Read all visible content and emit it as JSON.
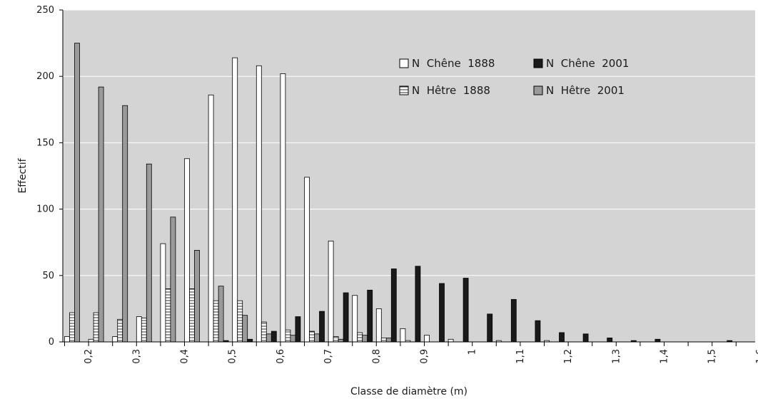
{
  "chart_data": {
    "type": "bar",
    "xlabel": "Classe de diamètre (m)",
    "ylabel": "Effectif",
    "ylim": [
      0,
      250
    ],
    "yticks": [
      0,
      50,
      100,
      150,
      200,
      250
    ],
    "grid": true,
    "legend_position": "top-right",
    "x_tick_labels": [
      "0,2",
      "0,3",
      "0,4",
      "0,5",
      "0,6",
      "0,7",
      "0,8",
      "0,9",
      "1",
      "1,1",
      "1,2",
      "1,3",
      "1,4",
      "1,5",
      "1,6"
    ],
    "categories": [
      "0,15",
      "0,2",
      "0,25",
      "0,3",
      "0,35",
      "0,4",
      "0,45",
      "0,5",
      "0,55",
      "0,6",
      "0,65",
      "0,7",
      "0,75",
      "0,8",
      "0,85",
      "0,9",
      "0,95",
      "1",
      "1,05",
      "1,1",
      "1,15",
      "1,2",
      "1,25",
      "1,3",
      "1,35",
      "1,4",
      "1,45",
      "1,5",
      "1,55"
    ],
    "series": [
      {
        "name": "N  Chêne  1888",
        "pattern": "white",
        "values": [
          4,
          2,
          4,
          19,
          74,
          138,
          186,
          214,
          208,
          202,
          124,
          76,
          35,
          25,
          10,
          5,
          2,
          0,
          1,
          0,
          1,
          0,
          0,
          0,
          0,
          0,
          0,
          0,
          0
        ]
      },
      {
        "name": "N  Hêtre  1888",
        "pattern": "hatched",
        "values": [
          22,
          22,
          17,
          18,
          40,
          40,
          31,
          31,
          15,
          9,
          8,
          4,
          7,
          3,
          1,
          0,
          0,
          0,
          0,
          0,
          0,
          0,
          0,
          0,
          0,
          0,
          0,
          0,
          0
        ]
      },
      {
        "name": "N  Hêtre  2001",
        "pattern": "gray",
        "values": [
          225,
          192,
          178,
          134,
          94,
          69,
          42,
          20,
          6,
          5,
          6,
          2,
          5,
          3,
          0,
          0,
          0,
          0,
          0,
          0,
          0,
          0,
          0,
          0,
          0,
          0,
          0,
          0,
          0
        ]
      },
      {
        "name": "N  Chêne  2001",
        "pattern": "black",
        "values": [
          0,
          0,
          0,
          0,
          0,
          0,
          1,
          2,
          8,
          19,
          23,
          37,
          39,
          55,
          57,
          44,
          48,
          21,
          32,
          16,
          7,
          6,
          3,
          1,
          2,
          0,
          0,
          1,
          0
        ]
      }
    ],
    "colors": {
      "plot_background": "#d4d4d4",
      "gridline": "#ffffff",
      "white_bar": "#ffffff",
      "black_bar": "#1a1a1a",
      "gray_bar": "#9a9a9a",
      "hatch_line": "#333333"
    }
  }
}
